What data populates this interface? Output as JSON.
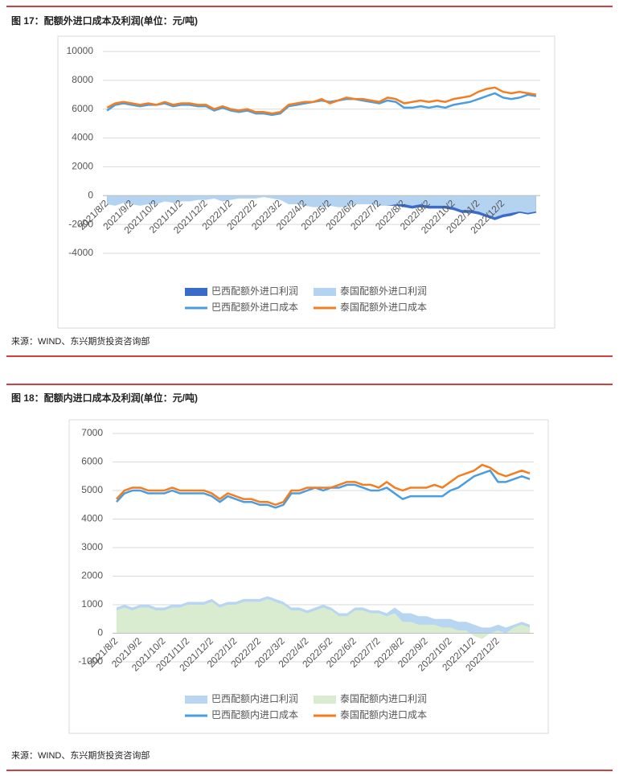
{
  "chart_data": [
    {
      "type": "line",
      "title": "图 17：配额外进口成本及利润(单位：元/吨)",
      "source": "来源：WIND、东兴期货投资咨询部",
      "categories": [
        "2021/8/2",
        null,
        null,
        "2021/9/2",
        null,
        null,
        "2021/10/2",
        null,
        null,
        "2021/11/2",
        null,
        null,
        "2021/12/2",
        null,
        null,
        "2022/1/2",
        null,
        null,
        "2022/2/2",
        null,
        null,
        "2022/3/2",
        null,
        null,
        "2022/4/2",
        null,
        null,
        "2022/5/2",
        null,
        null,
        "2022/6/2",
        null,
        null,
        "2022/7/2",
        null,
        null,
        "2022/8/2",
        null,
        null,
        "2022/9/2",
        null,
        null,
        "2022/10/2",
        null,
        null,
        "2022/11/2",
        null,
        null,
        "2022/12/2",
        null,
        null,
        null,
        null
      ],
      "ylim": [
        -4000,
        10000
      ],
      "yticks": [
        -4000,
        -2000,
        0,
        2000,
        4000,
        6000,
        8000,
        10000
      ],
      "grid": true,
      "series": [
        {
          "name": "巴西配额外进口利润",
          "type": "area",
          "color": "#3a6bc8",
          "values": [
            -400,
            -500,
            -300,
            -400,
            -500,
            -400,
            -500,
            -300,
            -400,
            -300,
            -300,
            -200,
            -200,
            -100,
            -300,
            -200,
            -100,
            -100,
            -100,
            0,
            -100,
            -200,
            -500,
            -500,
            -600,
            -700,
            -700,
            -600,
            -700,
            -700,
            -500,
            -500,
            -500,
            -600,
            -700,
            -700,
            -800,
            -900,
            -800,
            -900,
            -900,
            -900,
            -1000,
            -1200,
            -1200,
            -1300,
            -1500,
            -1700,
            -1500,
            -1400,
            -1200,
            -1300,
            -1200
          ]
        },
        {
          "name": "泰国配额外进口利润",
          "type": "area",
          "color": "#b4d3f0",
          "values": [
            -600,
            -700,
            -500,
            -600,
            -700,
            -600,
            -600,
            -400,
            -500,
            -400,
            -400,
            -300,
            -300,
            -200,
            -400,
            -300,
            -200,
            -200,
            -200,
            -100,
            -200,
            -300,
            -600,
            -600,
            -700,
            -800,
            -800,
            -700,
            -800,
            -800,
            -600,
            -600,
            -600,
            -700,
            -700,
            -600,
            -600,
            -700,
            -600,
            -700,
            -700,
            -700,
            -800,
            -1000,
            -1000,
            -1100,
            -1300,
            -1500,
            -1300,
            -1200,
            -1100,
            -1200,
            -1100
          ]
        },
        {
          "name": "巴西配额外进口成本",
          "type": "line",
          "color": "#4a9de0",
          "values": [
            5900,
            6300,
            6400,
            6300,
            6200,
            6300,
            6300,
            6400,
            6200,
            6300,
            6300,
            6200,
            6200,
            5900,
            6100,
            5900,
            5800,
            5900,
            5700,
            5700,
            5600,
            5700,
            6200,
            6300,
            6400,
            6500,
            6600,
            6500,
            6600,
            6700,
            6700,
            6600,
            6500,
            6400,
            6600,
            6500,
            6100,
            6100,
            6200,
            6100,
            6200,
            6100,
            6300,
            6400,
            6500,
            6700,
            6900,
            7100,
            6800,
            6700,
            6800,
            7000,
            6900
          ]
        },
        {
          "name": "泰国配额外进口成本",
          "type": "line",
          "color": "#f47d20",
          "values": [
            6100,
            6400,
            6500,
            6400,
            6300,
            6400,
            6300,
            6500,
            6300,
            6400,
            6400,
            6300,
            6300,
            6000,
            6200,
            6000,
            5900,
            6000,
            5800,
            5800,
            5700,
            5800,
            6300,
            6400,
            6500,
            6500,
            6700,
            6400,
            6600,
            6800,
            6700,
            6700,
            6600,
            6500,
            6800,
            6700,
            6400,
            6500,
            6600,
            6500,
            6600,
            6500,
            6700,
            6800,
            6900,
            7200,
            7400,
            7500,
            7200,
            7100,
            7200,
            7100,
            7000
          ]
        }
      ]
    },
    {
      "type": "line",
      "title": "图 18：配额内进口成本及利润(单位：元/吨)",
      "source": "来源：WIND、东兴期货投资咨询部",
      "categories": [
        "2021/8/2",
        null,
        null,
        "2021/9/2",
        null,
        null,
        "2021/10/2",
        null,
        null,
        "2021/11/2",
        null,
        null,
        "2021/12/2",
        null,
        null,
        "2022/1/2",
        null,
        null,
        "2022/2/2",
        null,
        null,
        "2022/3/2",
        null,
        null,
        "2022/4/2",
        null,
        null,
        "2022/5/2",
        null,
        null,
        "2022/6/2",
        null,
        null,
        "2022/7/2",
        null,
        null,
        "2022/8/2",
        null,
        null,
        "2022/9/2",
        null,
        null,
        "2022/10/2",
        null,
        null,
        "2022/11/2",
        null,
        null,
        "2022/12/2",
        null,
        null,
        null,
        null
      ],
      "ylim": [
        -1000,
        7000
      ],
      "yticks": [
        -1000,
        0,
        1000,
        2000,
        3000,
        4000,
        5000,
        6000,
        7000
      ],
      "grid": true,
      "series": [
        {
          "name": "巴西配额内进口利润",
          "type": "area",
          "color": "#b8d6f2",
          "values": [
            900,
            1000,
            900,
            1000,
            1000,
            900,
            900,
            1000,
            1000,
            1100,
            1100,
            1100,
            1200,
            1000,
            1100,
            1100,
            1200,
            1200,
            1200,
            1300,
            1200,
            1100,
            900,
            900,
            800,
            900,
            1000,
            900,
            700,
            700,
            900,
            900,
            800,
            800,
            700,
            900,
            700,
            700,
            600,
            600,
            500,
            500,
            500,
            400,
            400,
            300,
            200,
            200,
            300,
            200,
            300,
            400,
            300
          ]
        },
        {
          "name": "泰国配额内进口利润",
          "type": "area",
          "color": "#d9ecd0",
          "values": [
            800,
            900,
            800,
            900,
            900,
            800,
            800,
            900,
            900,
            1000,
            1000,
            1000,
            1100,
            900,
            1000,
            1000,
            1100,
            1100,
            1100,
            1200,
            1100,
            1000,
            800,
            800,
            700,
            800,
            900,
            800,
            600,
            600,
            800,
            800,
            700,
            700,
            600,
            700,
            400,
            400,
            300,
            300,
            300,
            200,
            200,
            100,
            100,
            -100,
            -200,
            0,
            100,
            0,
            200,
            300,
            200
          ]
        },
        {
          "name": "巴西配额内进口成本",
          "type": "line",
          "color": "#4a9de0",
          "values": [
            4600,
            4900,
            5000,
            5000,
            4900,
            4900,
            4900,
            5000,
            4900,
            4900,
            4900,
            4900,
            4800,
            4600,
            4800,
            4700,
            4600,
            4600,
            4500,
            4500,
            4400,
            4500,
            4900,
            4900,
            5000,
            5100,
            5000,
            5100,
            5100,
            5200,
            5200,
            5100,
            5000,
            5000,
            5100,
            4900,
            4700,
            4800,
            4800,
            4800,
            4800,
            4800,
            5000,
            5100,
            5300,
            5500,
            5600,
            5700,
            5300,
            5300,
            5400,
            5500,
            5400
          ]
        },
        {
          "name": "泰国配额内进口成本",
          "type": "line",
          "color": "#f47d20",
          "values": [
            4700,
            5000,
            5100,
            5100,
            5000,
            5000,
            5000,
            5100,
            5000,
            5000,
            5000,
            5000,
            4900,
            4700,
            4900,
            4800,
            4700,
            4700,
            4600,
            4600,
            4500,
            4600,
            5000,
            5000,
            5100,
            5100,
            5100,
            5100,
            5200,
            5300,
            5300,
            5200,
            5200,
            5100,
            5300,
            5100,
            5000,
            5100,
            5100,
            5100,
            5200,
            5100,
            5300,
            5500,
            5600,
            5700,
            5900,
            5800,
            5600,
            5500,
            5600,
            5700,
            5600
          ]
        }
      ]
    }
  ]
}
